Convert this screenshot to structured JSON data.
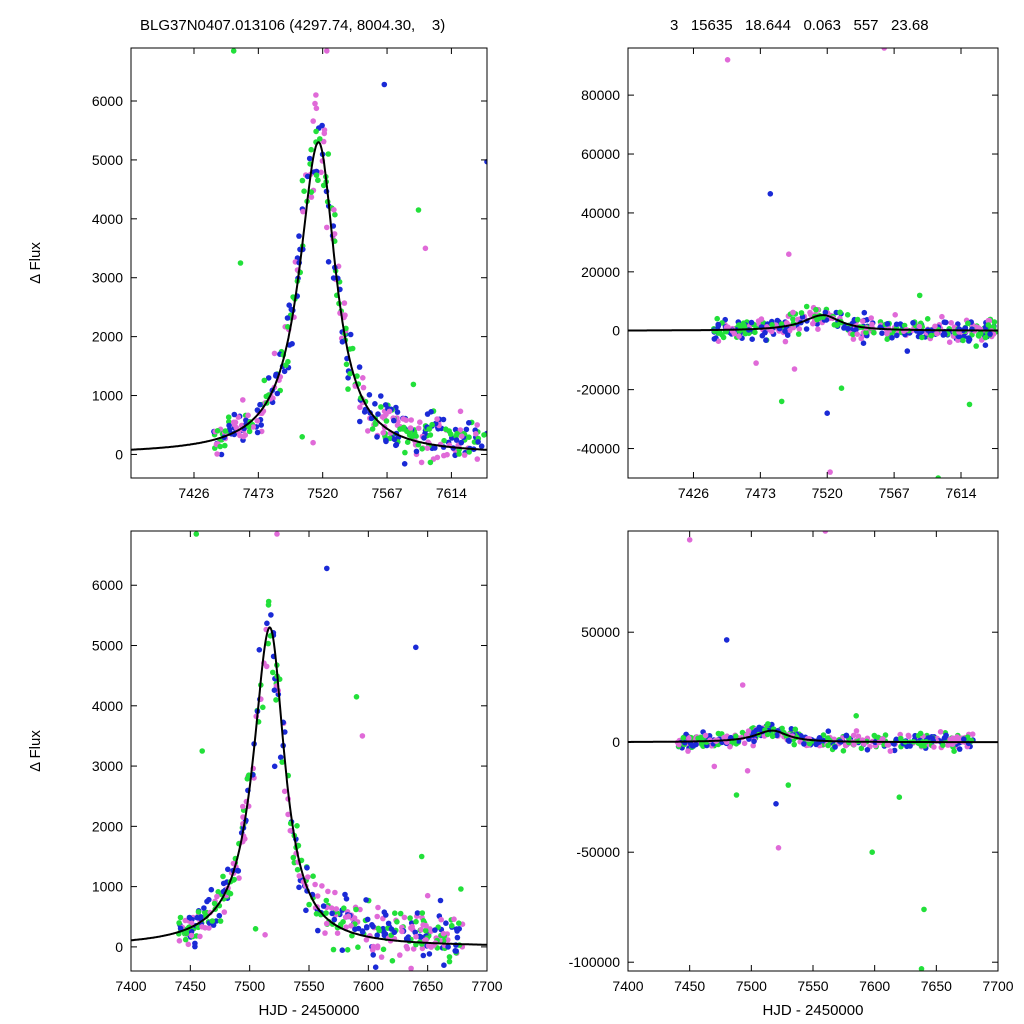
{
  "header": {
    "left": "BLG37N0407.013106 (4297.74, 8004.30,    3)",
    "right": "3   15635   18.644   0.063   557   23.68"
  },
  "colors": {
    "green": "#22e03a",
    "blue": "#1a2ad6",
    "magenta": "#e06ad8",
    "model": "#000000"
  },
  "chart_data": [
    {
      "id": "top-left",
      "type": "scatter",
      "ylabel": "Δ Flux",
      "xlabel": "",
      "xlim": [
        7380,
        7640
      ],
      "ylim": [
        -400,
        6900
      ],
      "xticks": [
        7426,
        7473,
        7520,
        7567,
        7614
      ],
      "yticks": [
        0,
        1000,
        2000,
        3000,
        4000,
        5000,
        6000
      ],
      "model": {
        "t0": 7517,
        "peak": 5300,
        "tau_rise": 17,
        "tau_fall": 15,
        "tail_amp": 0,
        "tail_tau": 1
      }
    },
    {
      "id": "top-right",
      "type": "scatter",
      "ylabel": "",
      "xlabel": "",
      "xlim": [
        7380,
        7640
      ],
      "ylim": [
        -50000,
        96000
      ],
      "xticks": [
        7426,
        7473,
        7520,
        7567,
        7614
      ],
      "yticks": [
        -40000,
        -20000,
        0,
        20000,
        40000,
        60000,
        80000
      ],
      "model": {
        "t0": 7517,
        "peak": 5300,
        "tau_rise": 17,
        "tau_fall": 15,
        "tail_amp": 0,
        "tail_tau": 1
      }
    },
    {
      "id": "bottom-left",
      "type": "scatter",
      "ylabel": "Δ Flux",
      "xlabel": "HJD - 2450000",
      "xlim": [
        7400,
        7700
      ],
      "ylim": [
        -400,
        6900
      ],
      "xticks": [
        7400,
        7450,
        7500,
        7550,
        7600,
        7650,
        7700
      ],
      "yticks": [
        0,
        1000,
        2000,
        3000,
        4000,
        5000,
        6000
      ],
      "model": {
        "t0": 7517,
        "peak": 5300,
        "tau_rise": 17,
        "tau_fall": 15,
        "tail_amp": 0,
        "tail_tau": 1
      }
    },
    {
      "id": "bottom-right",
      "type": "scatter",
      "ylabel": "",
      "xlabel": "HJD - 2450000",
      "xlim": [
        7400,
        7700
      ],
      "ylim": [
        -104000,
        96000
      ],
      "xticks": [
        7400,
        7450,
        7500,
        7550,
        7600,
        7650,
        7700
      ],
      "yticks": [
        -100000,
        -50000,
        0,
        50000
      ],
      "model": {
        "t0": 7517,
        "peak": 5300,
        "tau_rise": 17,
        "tau_fall": 15,
        "tail_amp": 0,
        "tail_tau": 1
      }
    }
  ]
}
